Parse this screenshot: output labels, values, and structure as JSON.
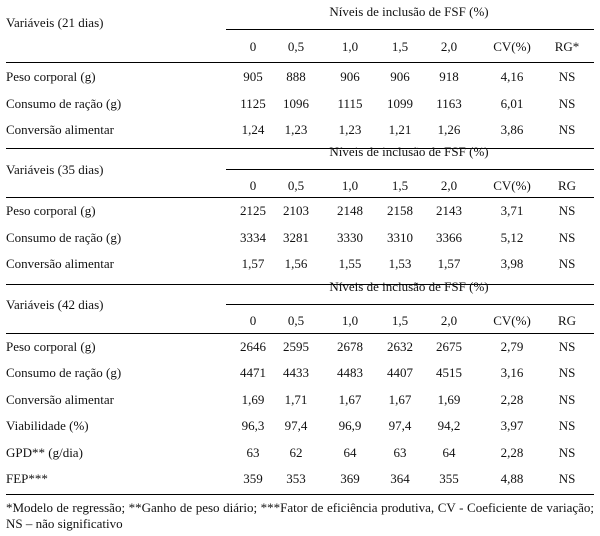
{
  "sections": [
    {
      "variables_label": "Variáveis (21 dias)",
      "levels_header": "Níveis de inclusão de FSF (%)",
      "columns": [
        "0",
        "0,5",
        "1,0",
        "1,5",
        "2,0",
        "CV(%)",
        "RG*"
      ],
      "rows": [
        {
          "label": "Peso corporal (g)",
          "values": [
            "905",
            "888",
            "906",
            "906",
            "918",
            "4,16",
            "NS"
          ]
        },
        {
          "label": "Consumo de ração (g)",
          "values": [
            "1125",
            "1096",
            "1115",
            "1099",
            "1163",
            "6,01",
            "NS"
          ]
        },
        {
          "label": "Conversão alimentar",
          "values": [
            "1,24",
            "1,23",
            "1,23",
            "1,21",
            "1,26",
            "3,86",
            "NS"
          ]
        }
      ]
    },
    {
      "variables_label": "Variáveis (35 dias)",
      "levels_header": "Níveis de inclusão de FSF (%)",
      "columns": [
        "0",
        "0,5",
        "1,0",
        "1,5",
        "2,0",
        "CV(%)",
        "RG"
      ],
      "rows": [
        {
          "label": "Peso corporal (g)",
          "values": [
            "2125",
            "2103",
            "2148",
            "2158",
            "2143",
            "3,71",
            "NS"
          ]
        },
        {
          "label": "Consumo de ração (g)",
          "values": [
            "3334",
            "3281",
            "3330",
            "3310",
            "3366",
            "5,12",
            "NS"
          ]
        },
        {
          "label": "Conversão alimentar",
          "values": [
            "1,57",
            "1,56",
            "1,55",
            "1,53",
            "1,57",
            "3,98",
            "NS"
          ]
        }
      ]
    },
    {
      "variables_label": "Variáveis (42 dias)",
      "levels_header": "Níveis de inclusão de FSF (%)",
      "columns": [
        "0",
        "0,5",
        "1,0",
        "1,5",
        "2,0",
        "CV(%)",
        "RG"
      ],
      "rows": [
        {
          "label": "Peso corporal (g)",
          "values": [
            "2646",
            "2595",
            "2678",
            "2632",
            "2675",
            "2,79",
            "NS"
          ]
        },
        {
          "label": "Consumo de ração (g)",
          "values": [
            "4471",
            "4433",
            "4483",
            "4407",
            "4515",
            "3,16",
            "NS"
          ]
        },
        {
          "label": "Conversão alimentar",
          "values": [
            "1,69",
            "1,71",
            "1,67",
            "1,67",
            "1,69",
            "2,28",
            "NS"
          ]
        },
        {
          "label": "Viabilidade (%)",
          "values": [
            "96,3",
            "97,4",
            "96,9",
            "97,4",
            "94,2",
            "3,97",
            "NS"
          ]
        },
        {
          "label": "GPD** (g/dia)",
          "values": [
            "63",
            "62",
            "64",
            "63",
            "64",
            "2,28",
            "NS"
          ]
        },
        {
          "label": "FEP***",
          "values": [
            "359",
            "353",
            "369",
            "364",
            "355",
            "4,88",
            "NS"
          ]
        }
      ]
    }
  ],
  "footnote": "*Modelo de regressão; **Ganho de peso diário; ***Fator de eficiência produtiva, CV -  Coeficiente de variação; NS – não significativo"
}
